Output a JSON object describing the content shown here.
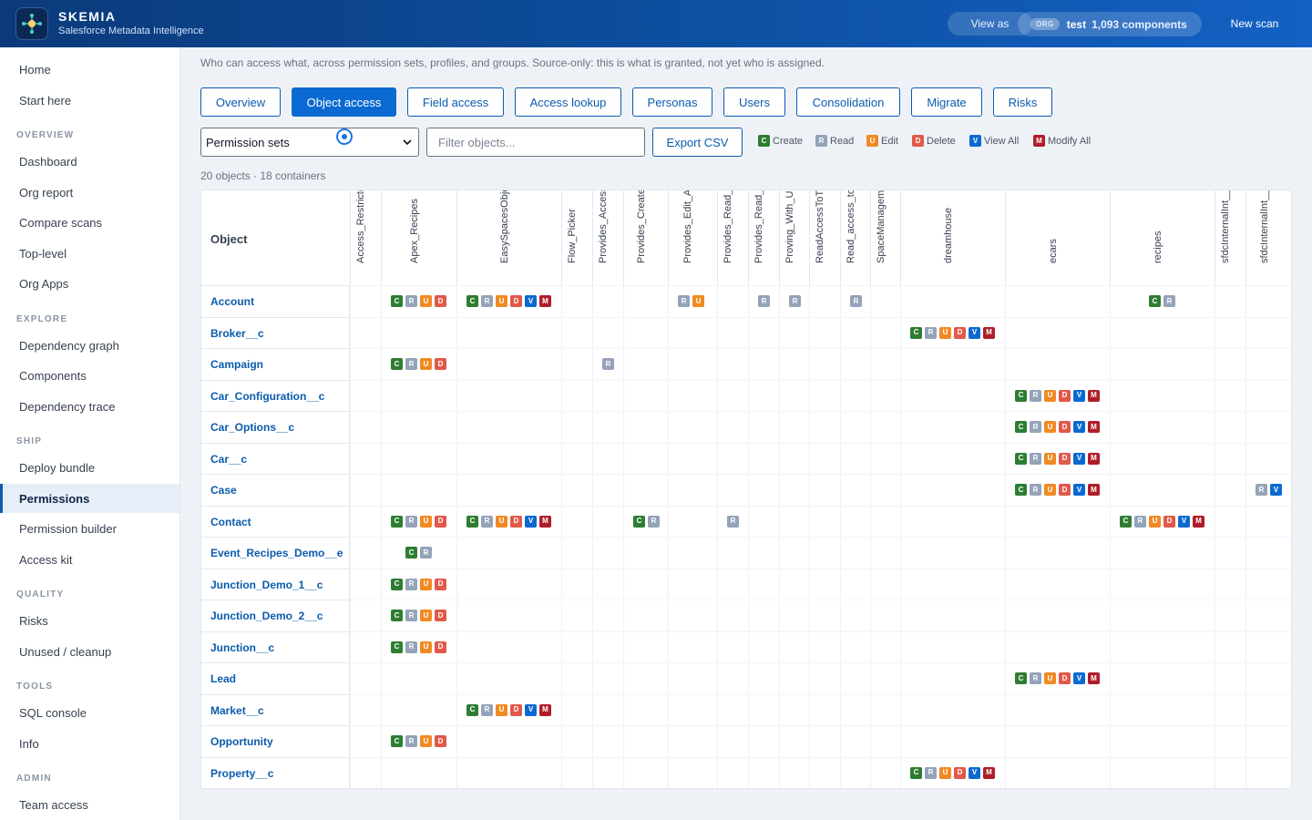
{
  "header": {
    "brand_name": "SKEMIA",
    "brand_sub": "Salesforce Metadata Intelligence",
    "view_as": "View as",
    "org_tag": "ORG",
    "org_name": "test",
    "org_count": "1,093 components",
    "new_scan": "New scan"
  },
  "sidebar": {
    "top": [
      "Home",
      "Start here"
    ],
    "sections": [
      {
        "title": "OVERVIEW",
        "items": [
          "Dashboard",
          "Org report",
          "Compare scans",
          "Top-level",
          "Org Apps"
        ]
      },
      {
        "title": "EXPLORE",
        "items": [
          "Dependency graph",
          "Components",
          "Dependency trace"
        ]
      },
      {
        "title": "SHIP",
        "items": [
          "Deploy bundle",
          "Permissions",
          "Permission builder",
          "Access kit"
        ]
      },
      {
        "title": "QUALITY",
        "items": [
          "Risks",
          "Unused / cleanup"
        ]
      },
      {
        "title": "TOOLS",
        "items": [
          "SQL console",
          "Info"
        ]
      },
      {
        "title": "ADMIN",
        "items": [
          "Team access"
        ]
      }
    ],
    "active": "Permissions"
  },
  "main": {
    "subtitle": "Who can access what, across permission sets, profiles, and groups. Source-only: this is what is granted, not yet who is assigned.",
    "tabs": [
      "Overview",
      "Object access",
      "Field access",
      "Access lookup",
      "Personas",
      "Users",
      "Consolidation",
      "Migrate",
      "Risks"
    ],
    "active_tab": "Object access",
    "select_value": "Permission sets",
    "filter_placeholder": "Filter objects...",
    "export_label": "Export CSV",
    "legend": [
      {
        "code": "C",
        "label": "Create"
      },
      {
        "code": "R",
        "label": "Read"
      },
      {
        "code": "U",
        "label": "Edit"
      },
      {
        "code": "D",
        "label": "Delete"
      },
      {
        "code": "V",
        "label": "View All"
      },
      {
        "code": "M",
        "label": "Modify All"
      }
    ],
    "count_text": "20 objects · 18 containers",
    "object_header": "Object"
  },
  "matrix": {
    "columns": [
      "Access_Restricted",
      "Apex_Recipes",
      "EasySpacesObjects",
      "Flow_Picker",
      "Provides_Access_",
      "Provides_Create_",
      "Provides_Edit_Ac",
      "Provides_Read_A",
      "Provides_Read_O",
      "Proving_With_Use",
      "ReadAccessToTra",
      "Read_access_to_",
      "SpaceManagemer",
      "dreamhouse",
      "ecars",
      "recipes",
      "sfdcInternalInt__",
      "sfdcInternalInt__"
    ],
    "rows": [
      {
        "object": "Account",
        "cells": {
          "1": "CRUD",
          "2": "CRUDVM",
          "6": "RU",
          "8": "R",
          "9": "R",
          "11": "R",
          "15": "CR"
        }
      },
      {
        "object": "Broker__c",
        "cells": {
          "13": "CRUDVM"
        }
      },
      {
        "object": "Campaign",
        "cells": {
          "1": "CRUD",
          "4": "R"
        }
      },
      {
        "object": "Car_Configuration__c",
        "cells": {
          "14": "CRUDVM"
        }
      },
      {
        "object": "Car_Options__c",
        "cells": {
          "14": "CRUDVM"
        }
      },
      {
        "object": "Car__c",
        "cells": {
          "14": "CRUDVM"
        }
      },
      {
        "object": "Case",
        "cells": {
          "14": "CRUDVM",
          "17": "RV"
        }
      },
      {
        "object": "Contact",
        "cells": {
          "1": "CRUD",
          "2": "CRUDVM",
          "5": "CR",
          "7": "R",
          "15": "CRUDVM"
        }
      },
      {
        "object": "Event_Recipes_Demo__e",
        "cells": {
          "1": "CR"
        }
      },
      {
        "object": "Junction_Demo_1__c",
        "cells": {
          "1": "CRUD"
        }
      },
      {
        "object": "Junction_Demo_2__c",
        "cells": {
          "1": "CRUD"
        }
      },
      {
        "object": "Junction__c",
        "cells": {
          "1": "CRUD"
        }
      },
      {
        "object": "Lead",
        "cells": {
          "14": "CRUDVM"
        }
      },
      {
        "object": "Market__c",
        "cells": {
          "2": "CRUDVM"
        }
      },
      {
        "object": "Opportunity",
        "cells": {
          "1": "CRUD"
        }
      },
      {
        "object": "Property__c",
        "cells": {
          "13": "CRUDVM"
        }
      }
    ]
  },
  "colors": {
    "create": "#2e7d32",
    "read": "#94a3b8",
    "edit": "#f08a24",
    "delete": "#e0594a",
    "view_all": "#0b6ad1",
    "modify_all": "#b01d2a",
    "accent": "#0b6ad1"
  }
}
